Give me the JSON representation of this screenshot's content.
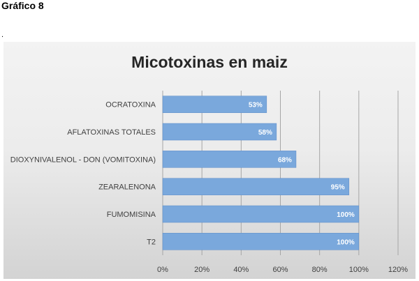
{
  "page": {
    "heading": "Gráfico 8",
    "note": "."
  },
  "colors": {
    "bar": "#7aa8dc",
    "bar_stroke": "#5b8bc8",
    "grid": "#a6a6a6",
    "axis": "#a6a6a6"
  },
  "chart_data": {
    "type": "bar",
    "orientation": "horizontal",
    "title": "Micotoxinas en maiz",
    "categories": [
      "OCRATOXINA",
      "AFLATOXINAS TOTALES",
      "DIOXYNIVALENOL - DON (VOMITOXINA)",
      "ZEARALENONA",
      "FUMOMISINA",
      "T2"
    ],
    "values": [
      53,
      58,
      68,
      95,
      100,
      100
    ],
    "data_labels": [
      "53%",
      "58%",
      "68%",
      "95%",
      "100%",
      "100%"
    ],
    "xlim": [
      0,
      120
    ],
    "xticks": [
      0,
      20,
      40,
      60,
      80,
      100,
      120
    ],
    "xtick_labels": [
      "0%",
      "20%",
      "40%",
      "60%",
      "80%",
      "100%",
      "120%"
    ],
    "grid": "vertical",
    "legend": "none"
  }
}
